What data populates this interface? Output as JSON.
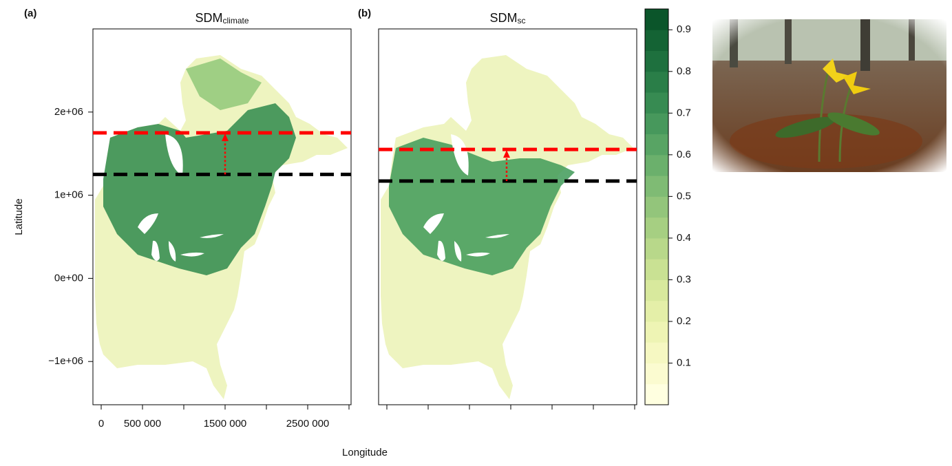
{
  "chart_data": [
    {
      "type": "raster-map",
      "panel_label": "(a)",
      "title": "SDM",
      "title_subscript": "climate",
      "y_label": "Latitude",
      "xlim": [
        -100000,
        3025000
      ],
      "ylim": [
        -1520000,
        3000000
      ],
      "xticks": [
        0,
        {
          "value": 500000,
          "label": "500 000"
        },
        {
          "value": 1000000,
          "label": null
        },
        {
          "value": 1500000,
          "label": "1500 000"
        },
        {
          "value": 2000000,
          "label": null
        },
        {
          "value": 2500000,
          "label": "2500 000"
        },
        {
          "value": 3000000,
          "label": null
        }
      ],
      "yticks": [
        {
          "value": -1000000,
          "label": "−1e+06"
        },
        {
          "value": 0,
          "label": "0e+00"
        },
        {
          "value": 1000000,
          "label": "1e+06"
        },
        {
          "value": 2000000,
          "label": "2e+06"
        }
      ],
      "reference_lines": [
        {
          "y": 1250000,
          "color": "#000000"
        },
        {
          "y": 1750000,
          "color": "#ff0000"
        }
      ],
      "shift_x": 1500000
    },
    {
      "type": "raster-map",
      "panel_label": "(b)",
      "title": "SDM",
      "title_subscript": "sc",
      "x_label": "Longitude",
      "xlim": [
        -100000,
        3025000
      ],
      "ylim": [
        -1520000,
        3000000
      ],
      "xticks": [
        {
          "value": 0,
          "label": null
        },
        {
          "value": 500000,
          "label": null
        },
        {
          "value": 1000000,
          "label": null
        },
        {
          "value": 1500000,
          "label": null
        },
        {
          "value": 2000000,
          "label": null
        },
        {
          "value": 2500000,
          "label": null
        },
        {
          "value": 3000000,
          "label": null
        }
      ],
      "reference_lines": [
        {
          "y": 1170000,
          "color": "#000000"
        },
        {
          "y": 1550000,
          "color": "#ff0000"
        }
      ],
      "shift_x": 1450000
    },
    {
      "type": "colorbar",
      "ylim": [
        0,
        0.95
      ],
      "yticks": [
        0.1,
        0.2,
        0.3,
        0.4,
        0.5,
        0.6,
        0.7,
        0.8,
        0.9
      ],
      "breaks": [
        0,
        0.05,
        0.1,
        0.15,
        0.2,
        0.25,
        0.3,
        0.35,
        0.4,
        0.45,
        0.5,
        0.55,
        0.6,
        0.65,
        0.7,
        0.75,
        0.8,
        0.85,
        0.9,
        0.95
      ],
      "colors": [
        "#ffffe0",
        "#fbfbd0",
        "#f6f8c2",
        "#eef4b4",
        "#e4efa8",
        "#d8e99d",
        "#c9e193",
        "#b8d88a",
        "#a6cf82",
        "#93c57b",
        "#7fbb74",
        "#6bb06c",
        "#58a464",
        "#47985c",
        "#378b52",
        "#2a7e48",
        "#1e703e",
        "#146334",
        "#0b552a"
      ]
    }
  ]
}
